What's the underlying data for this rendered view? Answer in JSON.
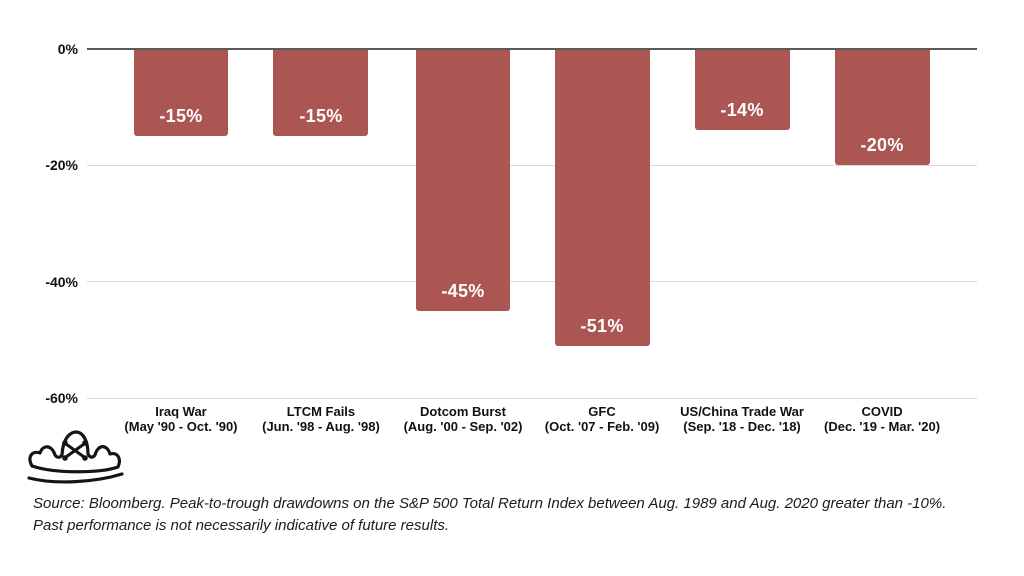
{
  "chart_data": {
    "type": "bar",
    "title": "",
    "categories": [
      "Iraq War",
      "LTCM Fails",
      "Dotcom Burst",
      "GFC",
      "US/China Trade War",
      "COVID"
    ],
    "periods": [
      "(May '90 - Oct. '90)",
      "(Jun. '98 - Aug. '98)",
      "(Aug. '00 - Sep. '02)",
      "(Oct. '07 - Feb. '09)",
      "(Sep. '18 - Dec. '18)",
      "(Dec. '19 - Mar. '20)"
    ],
    "values": [
      -15,
      -15,
      -45,
      -51,
      -14,
      -20
    ],
    "value_labels": [
      "-15%",
      "-15%",
      "-45%",
      "-51%",
      "-14%",
      "-20%"
    ],
    "yticks": [
      "0%",
      "-20%",
      "-40%",
      "-60%"
    ],
    "ylim": [
      -60,
      0
    ],
    "grid": "horizontal",
    "legend": "none",
    "bar_color": "#ac5653",
    "value_label_color": "#ffffff",
    "axis_line_color": "#595959",
    "gridline_color": "#d9d9d9",
    "bar_centers_pct": [
      10.56,
      26.29,
      42.25,
      57.87,
      73.6,
      89.33
    ],
    "bar_width_pct": 10.67
  },
  "footer": {
    "source_line1": "Source: Bloomberg. Peak-to-trough drawdowns on the S&P 500 Total Return Index between Aug. 1989 and Aug. 2020 greater than -10%.",
    "source_line2": "Past performance is not necessarily indicative of future results."
  },
  "logo": {
    "name": "pirate-hat-logo"
  }
}
